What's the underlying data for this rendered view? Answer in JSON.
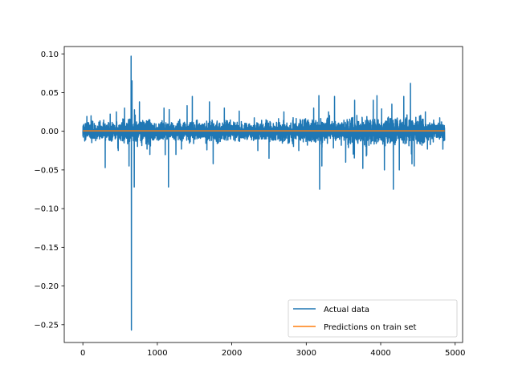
{
  "chart_data": {
    "type": "line",
    "title": "",
    "xlabel": "",
    "ylabel": "",
    "xlim": [
      -250,
      5100
    ],
    "ylim": [
      -0.273,
      0.1095
    ],
    "x_ticks": [
      0,
      1000,
      2000,
      3000,
      4000,
      5000
    ],
    "x_tick_labels": [
      "0",
      "1000",
      "2000",
      "3000",
      "4000",
      "5000"
    ],
    "y_ticks": [
      0.1,
      0.05,
      0.0,
      -0.05,
      -0.1,
      -0.15,
      -0.2,
      -0.25
    ],
    "y_tick_labels": [
      "0.10",
      "0.05",
      "0.00",
      "−0.05",
      "−0.10",
      "−0.15",
      "−0.20",
      "−0.25"
    ],
    "grid": false,
    "legend_position": "lower-right",
    "series": [
      {
        "name": "Actual data",
        "color": "#1f77b4",
        "n_points": 4860,
        "baseline_amplitude": 0.012,
        "x": [
          0,
          110,
          300,
          450,
          560,
          620,
          648,
          652,
          660,
          690,
          760,
          900,
          1090,
          1150,
          1160,
          1250,
          1400,
          1470,
          1700,
          1750,
          1900,
          2100,
          2350,
          2500,
          2700,
          2900,
          3100,
          3170,
          3180,
          3210,
          3300,
          3380,
          3530,
          3650,
          3760,
          3900,
          3950,
          4050,
          4150,
          4170,
          4250,
          4310,
          4400,
          4450,
          4600,
          4860
        ],
        "y": [
          0.0,
          0.02,
          -0.047,
          0.025,
          0.03,
          -0.045,
          0.097,
          -0.257,
          0.065,
          -0.072,
          0.038,
          -0.03,
          0.03,
          -0.072,
          0.028,
          -0.03,
          0.033,
          0.045,
          0.038,
          -0.042,
          0.03,
          0.026,
          -0.025,
          -0.035,
          0.025,
          -0.025,
          0.03,
          0.046,
          -0.075,
          -0.045,
          0.025,
          0.045,
          -0.04,
          0.04,
          -0.048,
          0.04,
          0.046,
          -0.05,
          0.035,
          -0.075,
          -0.05,
          0.045,
          0.062,
          -0.045,
          0.025,
          0.0
        ]
      },
      {
        "name": "Predictions on train set",
        "color": "#ff7f0e",
        "x": [
          0,
          4860
        ],
        "y": [
          0.0005,
          0.0005
        ]
      }
    ]
  }
}
